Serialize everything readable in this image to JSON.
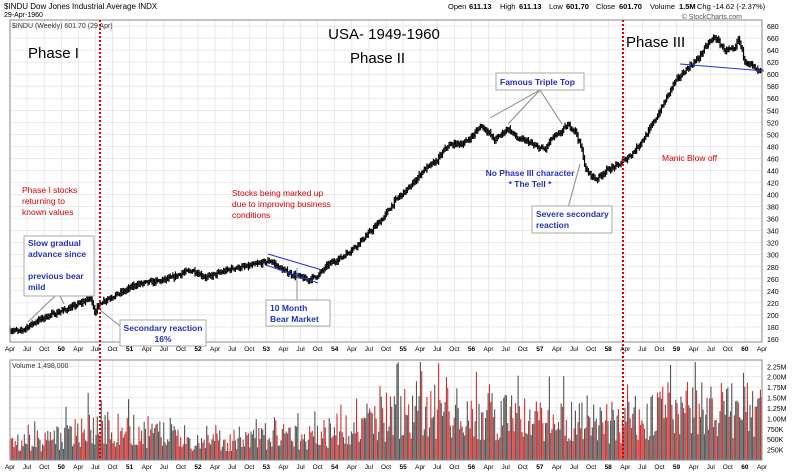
{
  "header": {
    "symbol_line": "$INDU Dow Jones Industrial Average INDX",
    "date": "29-Apr-1960",
    "open_label": "Open",
    "open": "611.13",
    "high_label": "High",
    "high": "611.13",
    "low_label": "Low",
    "low": "601.70",
    "close_label": "Close",
    "close": "601.70",
    "volume_label": "Volume",
    "volume": "1.5M",
    "chg_label": "Chg",
    "chg": "-14.62 (-2.37%)",
    "copyright": "© StockCharts.com",
    "legend_price": "$INDU (Weekly) 601.70 (29 Apr)",
    "legend_volume": "Volume 1,498,000"
  },
  "chart_data": [
    {
      "type": "line",
      "title": "USA- 1949-1960",
      "x_tick_labels": [
        "Apr",
        "Jul",
        "Oct",
        "50",
        "Apr",
        "Jul",
        "Oct",
        "51",
        "Apr",
        "Jul",
        "Oct",
        "52",
        "Apr",
        "Jul",
        "Oct",
        "53",
        "Apr",
        "Jul",
        "Oct",
        "54",
        "Apr",
        "Jul",
        "Oct",
        "55",
        "Apr",
        "Jul",
        "Oct",
        "56",
        "Apr",
        "Jul",
        "Oct",
        "57",
        "Apr",
        "Jul",
        "Oct",
        "58",
        "Apr",
        "Jul",
        "Oct",
        "59",
        "Apr",
        "Jul",
        "Oct",
        "60",
        "Apr"
      ],
      "y_ticks": [
        160,
        180,
        200,
        220,
        240,
        260,
        280,
        300,
        320,
        340,
        360,
        380,
        400,
        420,
        440,
        460,
        480,
        500,
        520,
        540,
        560,
        580,
        600,
        620,
        640,
        660,
        680
      ],
      "ylim": [
        155,
        690
      ],
      "x_range": [
        1949.3,
        1960.4
      ],
      "grid": true,
      "series": [
        {
          "x": [
            1949.3,
            1949.45,
            1949.55,
            1949.7,
            1949.85,
            1950.0,
            1950.2,
            1950.35,
            1950.45,
            1950.5,
            1950.55,
            1950.65,
            1950.8,
            1951.0,
            1951.15,
            1951.35,
            1951.5,
            1951.7,
            1951.85,
            1952.0,
            1952.2,
            1952.4,
            1952.6,
            1952.8,
            1953.0,
            1953.15,
            1953.3,
            1953.45,
            1953.6,
            1953.7,
            1953.85,
            1954.0,
            1954.2,
            1954.4,
            1954.6,
            1954.8,
            1955.0,
            1955.2,
            1955.4,
            1955.6,
            1955.75,
            1955.85,
            1956.0,
            1956.15,
            1956.25,
            1956.35,
            1956.45,
            1956.55,
            1956.65,
            1956.8,
            1956.95,
            1957.05,
            1957.2,
            1957.3,
            1957.4,
            1957.5,
            1957.55,
            1957.65,
            1957.75,
            1957.8,
            1957.95,
            1958.1,
            1958.3,
            1958.5,
            1958.7,
            1958.9,
            1959.1,
            1959.3,
            1959.45,
            1959.6,
            1959.7,
            1959.85,
            1960.0,
            1960.05,
            1960.15,
            1960.25,
            1960.33
          ],
          "y": [
            175,
            172,
            180,
            190,
            198,
            204,
            212,
            220,
            226,
            228,
            205,
            222,
            230,
            240,
            250,
            254,
            256,
            262,
            270,
            274,
            262,
            270,
            278,
            280,
            286,
            290,
            276,
            268,
            262,
            258,
            266,
            284,
            296,
            314,
            336,
            360,
            392,
            412,
            440,
            456,
            480,
            484,
            485,
            500,
            515,
            505,
            490,
            500,
            510,
            492,
            488,
            480,
            475,
            494,
            500,
            512,
            515,
            505,
            470,
            440,
            425,
            440,
            450,
            470,
            500,
            540,
            585,
            610,
            625,
            650,
            662,
            640,
            640,
            660,
            622,
            615,
            605
          ]
        }
      ],
      "annotations": [
        {
          "text": "Phase I",
          "color": "#000000"
        },
        {
          "text": "Phase II",
          "color": "#000000"
        },
        {
          "text": "Phase III",
          "color": "#000000"
        },
        {
          "text": "Phase I stocks returning to known values",
          "color": "#dd0000"
        },
        {
          "text": "Stocks being marked up due to improving business conditions",
          "color": "#dd0000"
        },
        {
          "text": "Manic Blow off",
          "color": "#dd0000"
        },
        {
          "text": "No Phase III character * The Tell *",
          "color": "#2233bb"
        },
        {
          "text": "Slow gradual advance since previous bear mild",
          "color": "#2233bb"
        },
        {
          "text": "Secondary reaction 16%",
          "color": "#2233bb"
        },
        {
          "text": "10 Month Bear Market",
          "color": "#2233bb"
        },
        {
          "text": "Famous Triple Top",
          "color": "#2233bb"
        },
        {
          "text": "Severe secondary reaction",
          "color": "#2233bb"
        }
      ]
    },
    {
      "type": "bar",
      "title": "Volume",
      "y_tick_labels": [
        "2.25M",
        "2.00M",
        "1.75M",
        "1.50M",
        "1.25M",
        "1.00M",
        "750K",
        "500K",
        "250K"
      ],
      "y_ticks": [
        2.25,
        2.0,
        1.75,
        1.5,
        1.25,
        1.0,
        0.75,
        0.5,
        0.25
      ],
      "ylim": [
        0,
        2.4
      ],
      "profile_x": [
        1949.3,
        1950.0,
        1950.5,
        1951.0,
        1951.5,
        1952.0,
        1952.5,
        1953.0,
        1953.5,
        1954.0,
        1954.5,
        1955.0,
        1955.5,
        1956.0,
        1956.5,
        1957.0,
        1957.5,
        1958.0,
        1958.5,
        1959.0,
        1959.5,
        1960.0,
        1960.4
      ],
      "profile_y": [
        0.45,
        0.65,
        0.95,
        0.85,
        0.75,
        0.55,
        0.55,
        0.6,
        0.65,
        0.8,
        1.05,
        1.35,
        1.45,
        1.3,
        1.25,
        1.2,
        1.2,
        1.05,
        1.1,
        1.45,
        1.55,
        1.45,
        1.4
      ],
      "up_color": "#555555",
      "down_color": "#cc3333"
    }
  ],
  "colors": {
    "phase_divider": "#e00000",
    "trendline": "#2233cc",
    "callout_text": "#2233bb",
    "price_bars": "#000000",
    "grid": "#dddddd"
  }
}
